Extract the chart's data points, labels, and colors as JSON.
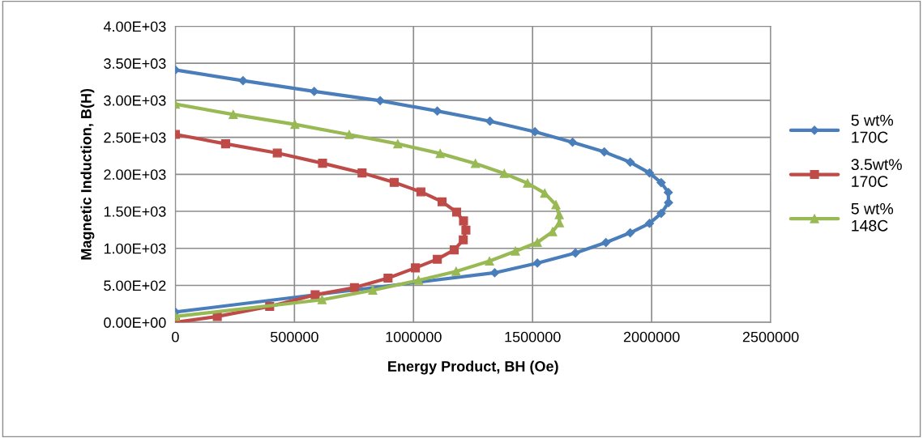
{
  "chart_data": {
    "type": "line",
    "xlabel": "Energy Product, BH (Oe)",
    "ylabel": "Magnetic Induction, B(H)",
    "xlim": [
      0,
      2500000
    ],
    "xticks": [
      0,
      500000,
      1000000,
      1500000,
      2000000,
      2500000
    ],
    "ylim": [
      0,
      4000
    ],
    "yticks": [
      {
        "value": 0,
        "label": "0.00E+00"
      },
      {
        "value": 500,
        "label": "5.00E+02"
      },
      {
        "value": 1000,
        "label": "1.00E+03"
      },
      {
        "value": 1500,
        "label": "1.50E+03"
      },
      {
        "value": 2000,
        "label": "2.00E+03"
      },
      {
        "value": 2500,
        "label": "2.50E+03"
      },
      {
        "value": 3000,
        "label": "3.00E+03"
      },
      {
        "value": 3500,
        "label": "3.50E+03"
      },
      {
        "value": 4000,
        "label": "4.00E+03"
      }
    ],
    "grid": true,
    "legend": "right",
    "line_style": "solid",
    "series": [
      {
        "name": "5 wt% 170C",
        "color": "#4a7ebb",
        "marker": "diamond",
        "x": [
          0,
          284000,
          583000,
          860000,
          1100000,
          1321000,
          1510000,
          1668000,
          1801000,
          1910000,
          1991000,
          2040000,
          2070000,
          2071000,
          2040000,
          1991000,
          1910000,
          1808000,
          1680000,
          1520000,
          1341000,
          0
        ],
        "values": [
          3410,
          3265,
          3120,
          2995,
          2855,
          2718,
          2576,
          2434,
          2303,
          2164,
          2019,
          1888,
          1756,
          1618,
          1472,
          1337,
          1210,
          1079,
          937,
          801,
          670,
          140
        ]
      },
      {
        "name": "3.5wt% 170C",
        "color": "#be4b48",
        "marker": "square",
        "x": [
          0,
          211000,
          428000,
          618000,
          784000,
          919000,
          1031000,
          1120000,
          1181000,
          1210000,
          1220000,
          1209000,
          1171000,
          1100000,
          1008000,
          893000,
          752000,
          587000,
          396000,
          176000,
          0
        ],
        "values": [
          2539,
          2412,
          2288,
          2150,
          2019,
          1891,
          1763,
          1629,
          1490,
          1370,
          1246,
          1115,
          980,
          853,
          736,
          598,
          470,
          372,
          215,
          80,
          0
        ]
      },
      {
        "name": "5 wt% 148C",
        "color": "#98b954",
        "marker": "triangle",
        "x": [
          0,
          243000,
          502000,
          730000,
          934000,
          1112000,
          1260000,
          1381000,
          1479000,
          1551000,
          1598000,
          1612000,
          1613000,
          1584000,
          1520000,
          1428000,
          1319000,
          1179000,
          1021000,
          829000,
          616000,
          0
        ],
        "values": [
          2948,
          2809,
          2675,
          2536,
          2412,
          2281,
          2146,
          2011,
          1880,
          1745,
          1588,
          1454,
          1344,
          1224,
          1079,
          962,
          827,
          689,
          568,
          434,
          306,
          80
        ]
      }
    ]
  }
}
